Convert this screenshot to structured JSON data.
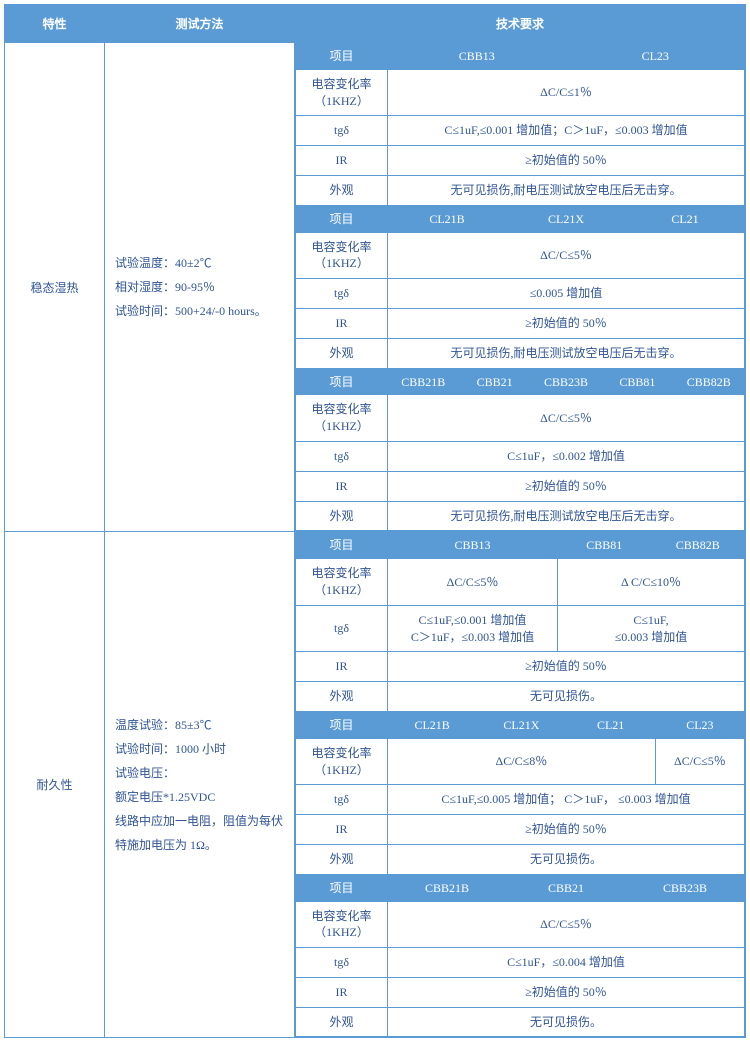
{
  "header": {
    "c1": "特性",
    "c2": "测试方法",
    "c3": "技术要求"
  },
  "labels": {
    "proj": "项目",
    "cap": "电容变化率（1KHZ）",
    "tg": "tgδ",
    "ir": "IR",
    "app": "外观"
  },
  "row1": {
    "title": "稳态湿热",
    "method": "试验温度：40±2℃\n相对湿度：90-95％\n试验时间：500+24/-0 hours。",
    "t1": {
      "cols": [
        "CBB13",
        "CL23"
      ],
      "cap": "ΔC/C≤1％",
      "tg": "C≤1uF,≤0.001 增加值；C＞1uF，≤0.003 增加值",
      "ir": "≥初始值的 50％",
      "app": "无可见损伤,耐电压测试放空电压后无击穿。"
    },
    "t2": {
      "cols": [
        "CL21B",
        "CL21X",
        "CL21"
      ],
      "cap": "ΔC/C≤5％",
      "tg": "≤0.005 增加值",
      "ir": "≥初始值的 50％",
      "app": "无可见损伤,耐电压测试放空电压后无击穿。"
    },
    "t3": {
      "cols": [
        "CBB21B",
        "CBB21",
        "CBB23B",
        "CBB81",
        "CBB82B"
      ],
      "cap": "ΔC/C≤5％",
      "tg": "C≤1uF，≤0.002 增加值",
      "ir": "≥初始值的 50％",
      "app": "无可见损伤,耐电压测试放空电压后无击穿。"
    }
  },
  "row2": {
    "title": "耐久性",
    "method": "温度试验：85±3℃\n试验时间：1000 小时\n试验电压：\n额定电压*1.25VDC\n线路中应加一电阻，阻值为每伏特施加电压为 1Ω。",
    "t1": {
      "cols": [
        "CBB13",
        "CBB81",
        "CBB82B"
      ],
      "cap1": "ΔC/C≤5％",
      "cap2": "Δ C/C≤10％",
      "tg1": "C≤1uF,≤0.001 增加值\nC＞1uF，≤0.003 增加值",
      "tg2": "C≤1uF,\n≤0.003 增加值",
      "ir": "≥初始值的 50％",
      "app": "无可见损伤。"
    },
    "t2": {
      "cols": [
        "CL21B",
        "CL21X",
        "CL21",
        "CL23"
      ],
      "cap1": "ΔC/C≤8％",
      "cap2": "ΔC/C≤5％",
      "tg": "C≤1uF,≤0.005 增加值； C＞1uF， ≤0.003 增加值",
      "ir": "≥初始值的 50％",
      "app": "无可见损伤。"
    },
    "t3": {
      "cols": [
        "CBB21B",
        "CBB21",
        "CBB23B"
      ],
      "cap": "ΔC/C≤5％",
      "tg": "C≤1uF，≤0.004 增加值",
      "ir": "≥初始值的 50％",
      "app": "无可见损伤。"
    }
  }
}
